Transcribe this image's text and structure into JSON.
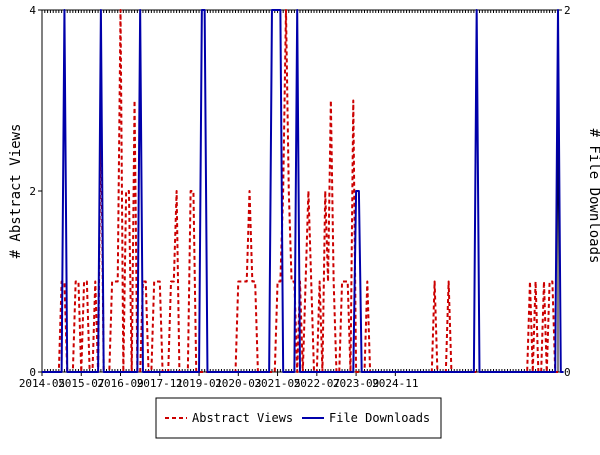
{
  "chart_data": {
    "type": "line",
    "y_left_label": "# Abstract Views",
    "y_right_label": "# File Downloads",
    "y_left_range": [
      0,
      4
    ],
    "y_right_range": [
      0,
      2
    ],
    "y_left_ticks": [
      "0",
      "2",
      "4"
    ],
    "y_right_ticks": [
      "0",
      "2"
    ],
    "x_range": [
      "2014-05",
      "2025-05"
    ],
    "x_tick_labels": [
      "2014-05",
      "2015-07",
      "2016-09",
      "2017-11",
      "2019-01",
      "2020-03",
      "2021-05",
      "2022-07",
      "2023-09",
      "2024-11"
    ],
    "grid": false,
    "legend_position": "bottom",
    "series": [
      {
        "name": "Abstract Views",
        "axis": "left",
        "color": "#cc0000",
        "style": "dashed",
        "values": [
          0,
          0,
          0,
          0,
          0,
          0,
          0,
          1,
          1,
          0,
          0,
          0,
          1,
          1,
          0,
          1,
          1,
          0,
          0,
          1,
          0,
          3,
          0,
          0,
          0,
          1,
          1,
          1,
          4,
          0,
          2,
          2,
          0,
          3,
          0,
          0,
          1,
          1,
          0,
          0,
          1,
          1,
          1,
          0,
          0,
          0,
          1,
          1,
          2,
          0,
          0,
          0,
          0,
          2,
          2,
          0,
          0,
          0,
          0,
          0,
          0,
          0,
          0,
          0,
          0,
          0,
          0,
          0,
          0,
          0,
          1,
          1,
          1,
          1,
          2,
          1,
          1,
          0,
          0,
          0,
          0,
          0,
          0,
          0,
          1,
          1,
          2,
          4,
          2,
          1,
          1,
          0,
          1,
          0,
          1,
          2,
          1,
          0,
          0,
          1,
          0,
          2,
          1,
          3,
          1,
          0,
          0,
          1,
          1,
          1,
          0,
          3,
          0,
          0,
          0,
          0,
          1,
          0,
          0,
          0,
          0,
          0,
          0,
          0,
          0,
          0,
          0,
          0,
          0,
          0,
          0,
          0,
          0,
          0,
          0,
          0,
          0,
          0,
          0,
          0,
          1,
          0,
          0,
          0,
          0,
          1,
          0,
          0,
          0,
          0,
          0,
          0,
          0,
          0,
          0,
          0,
          0,
          0,
          0,
          0,
          0,
          0,
          0,
          0,
          0,
          0,
          0,
          0,
          0,
          0,
          0,
          0,
          0,
          0,
          1,
          0,
          1,
          0,
          0,
          1,
          0,
          1,
          1,
          0,
          0
        ]
      },
      {
        "name": "File Downloads",
        "axis": "right",
        "color": "#0000aa",
        "style": "solid",
        "values": [
          0,
          0,
          0,
          0,
          0,
          0,
          0,
          0,
          2,
          0,
          0,
          0,
          0,
          0,
          0,
          0,
          0,
          0,
          0,
          0,
          0,
          2,
          0,
          0,
          0,
          0,
          0,
          0,
          0,
          0,
          0,
          0,
          0,
          0,
          0,
          2,
          0,
          0,
          0,
          0,
          0,
          0,
          0,
          0,
          0,
          0,
          0,
          0,
          0,
          0,
          0,
          0,
          0,
          0,
          0,
          0,
          0,
          2,
          2,
          0,
          0,
          0,
          0,
          0,
          0,
          0,
          0,
          0,
          0,
          0,
          0,
          0,
          0,
          0,
          0,
          0,
          0,
          0,
          0,
          0,
          0,
          0,
          2,
          2,
          2,
          2,
          0,
          0,
          0,
          0,
          0,
          2,
          0,
          0,
          0,
          0,
          0,
          0,
          0,
          0,
          0,
          0,
          0,
          0,
          0,
          0,
          0,
          0,
          0,
          0,
          0,
          0,
          1,
          1,
          0,
          0,
          0,
          0,
          0,
          0,
          0,
          0,
          0,
          0,
          0,
          0,
          0,
          0,
          0,
          0,
          0,
          0,
          0,
          0,
          0,
          0,
          0,
          0,
          0,
          0,
          0,
          0,
          0,
          0,
          0,
          0,
          0,
          0,
          0,
          0,
          0,
          0,
          0,
          0,
          0,
          2,
          0,
          0,
          0,
          0,
          0,
          0,
          0,
          0,
          0,
          0,
          0,
          0,
          0,
          0,
          0,
          0,
          0,
          0,
          0,
          0,
          0,
          0,
          0,
          0,
          0,
          0,
          0,
          0,
          2,
          0,
          0
        ]
      }
    ]
  }
}
